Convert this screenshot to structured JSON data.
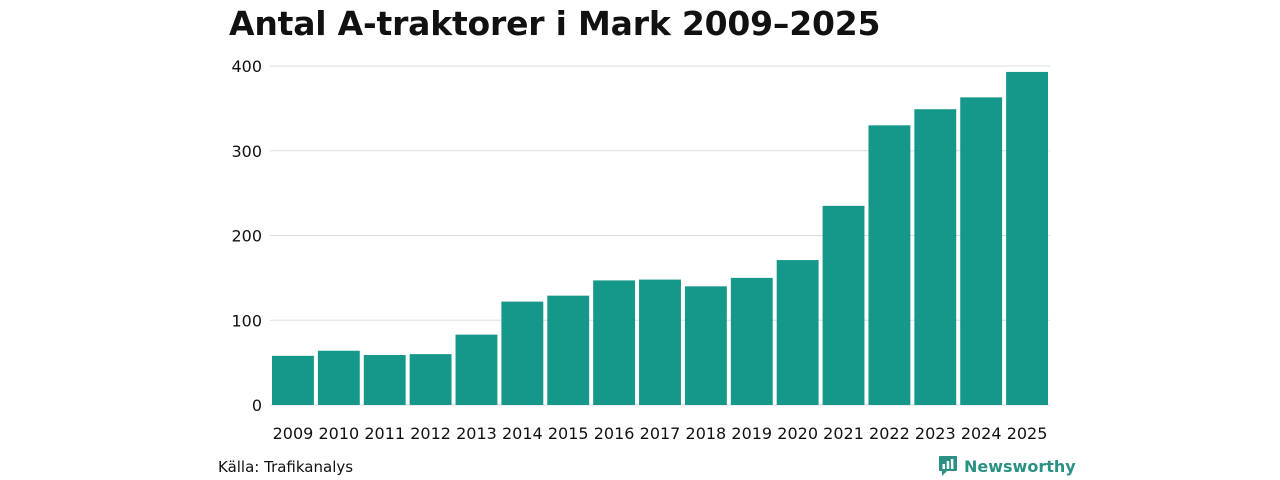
{
  "colors": {
    "bar": "#15978a",
    "grid": "#dddddd",
    "text": "#111111",
    "brand": "#2a9184"
  },
  "chart_data": {
    "type": "bar",
    "title": "Antal A-traktorer i Mark 2009–2025",
    "xlabel": "",
    "ylabel": "",
    "ylim": [
      0,
      400
    ],
    "yticks": [
      0,
      100,
      200,
      300,
      400
    ],
    "categories": [
      "2009",
      "2010",
      "2011",
      "2012",
      "2013",
      "2014",
      "2015",
      "2016",
      "2017",
      "2018",
      "2019",
      "2020",
      "2021",
      "2022",
      "2023",
      "2024",
      "2025"
    ],
    "values": [
      58,
      64,
      59,
      60,
      83,
      122,
      129,
      147,
      148,
      140,
      150,
      171,
      235,
      330,
      349,
      363,
      393
    ],
    "grid": true,
    "legend": "none"
  },
  "footer": {
    "source": "Källa: Trafikanalys",
    "brand_name": "Newsworthy",
    "brand_icon": "bar-chart-badge-icon"
  }
}
